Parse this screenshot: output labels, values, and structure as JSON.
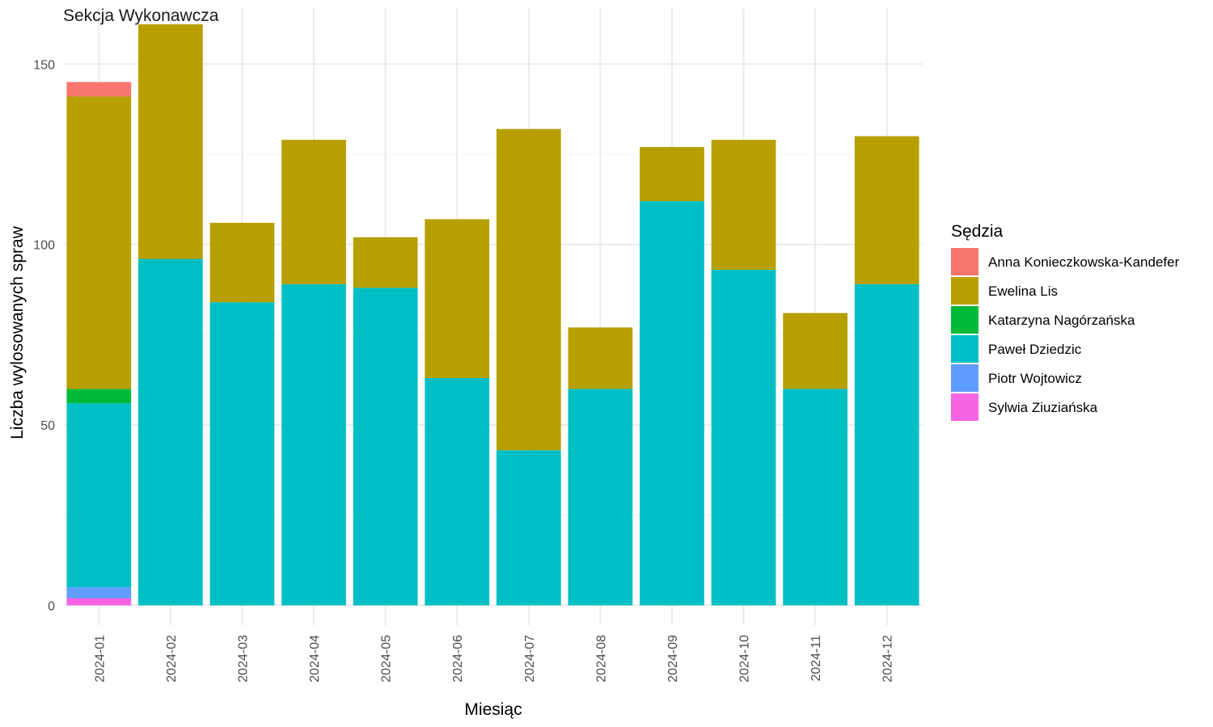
{
  "chart_data": {
    "type": "bar",
    "stacked": true,
    "title": "Sekcja Wykonawcza",
    "xlabel": "Miesiąc",
    "ylabel": "Liczba wylosowanych spraw",
    "ylim": [
      -5.5,
      165.5
    ],
    "yticks": [
      0,
      50,
      100,
      150
    ],
    "grid": true,
    "legend_title": "Sędzia",
    "legend_position": "right",
    "categories": [
      "2024-01",
      "2024-02",
      "2024-03",
      "2024-04",
      "2024-05",
      "2024-06",
      "2024-07",
      "2024-08",
      "2024-09",
      "2024-10",
      "2024-11",
      "2024-12"
    ],
    "series": [
      {
        "name": "Anna Konieczkowska-Kandefer",
        "color": "#F8766D",
        "values": [
          4,
          0,
          0,
          0,
          0,
          0,
          0,
          0,
          0,
          0,
          0,
          0
        ]
      },
      {
        "name": "Ewelina Lis",
        "color": "#B79F00",
        "values": [
          81,
          65,
          22,
          40,
          14,
          44,
          89,
          17,
          15,
          36,
          21,
          41
        ]
      },
      {
        "name": "Katarzyna Nagórzańska",
        "color": "#00BA38",
        "values": [
          4,
          0,
          0,
          0,
          0,
          0,
          0,
          0,
          0,
          0,
          0,
          0
        ]
      },
      {
        "name": "Paweł Dziedzic",
        "color": "#00BFC4",
        "values": [
          51,
          96,
          84,
          89,
          88,
          63,
          43,
          60,
          112,
          93,
          60,
          89
        ]
      },
      {
        "name": "Piotr Wojtowicz",
        "color": "#619CFF",
        "values": [
          3,
          0,
          0,
          0,
          0,
          0,
          0,
          0,
          0,
          0,
          0,
          0
        ]
      },
      {
        "name": "Sylwia Ziuziańska",
        "color": "#F564E3",
        "values": [
          2,
          0,
          0,
          0,
          0,
          0,
          0,
          0,
          0,
          0,
          0,
          0
        ]
      }
    ]
  }
}
